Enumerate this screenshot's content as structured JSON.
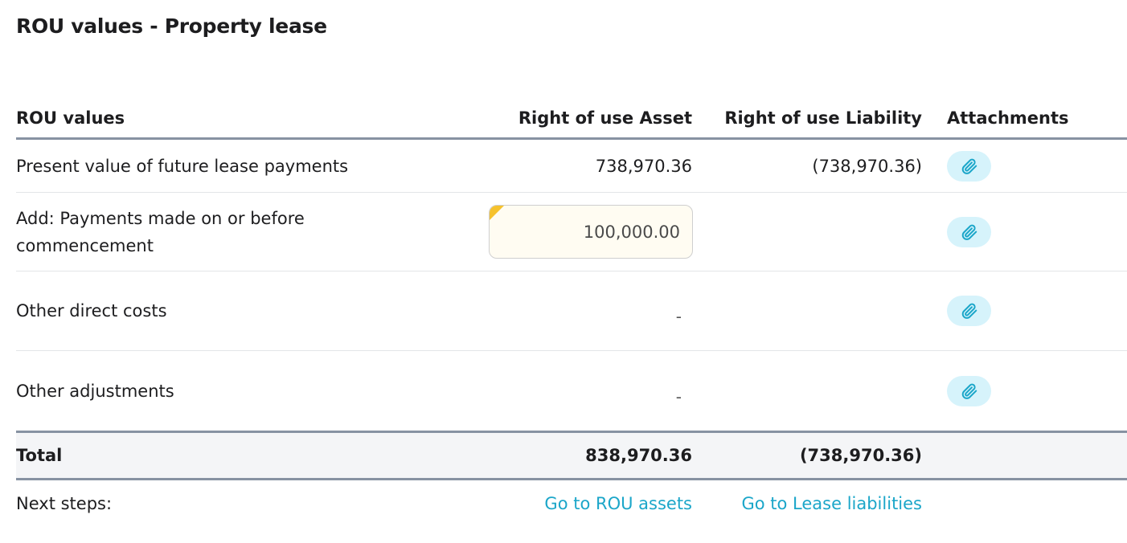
{
  "page": {
    "title": "ROU values - Property lease"
  },
  "table": {
    "headers": {
      "label": "ROU values",
      "asset": "Right of use Asset",
      "liability": "Right of use Liability",
      "attachments": "Attachments"
    },
    "rows": [
      {
        "label": "Present value of future lease payments",
        "asset": "738,970.36",
        "liability": "(738,970.36)",
        "attachment_icon": "paperclip-icon"
      },
      {
        "label_line1": "Add: Payments made on or before",
        "label_line2": "commencement",
        "asset_input": "100,000.00",
        "attachment_icon": "paperclip-icon"
      },
      {
        "label": "Other direct costs",
        "asset_placeholder": "-",
        "attachment_icon": "paperclip-icon"
      },
      {
        "label": "Other adjustments",
        "asset_placeholder": "-",
        "attachment_icon": "paperclip-icon"
      }
    ],
    "total": {
      "label": "Total",
      "asset": "838,970.36",
      "liability": "(738,970.36)"
    },
    "next_steps": {
      "label": "Next steps:",
      "asset_link": "Go to ROU assets",
      "liability_link": "Go to Lease liabilities"
    }
  },
  "colors": {
    "link": "#1ba6c9",
    "attach_button_bg": "#d6f3fb",
    "input_marker": "#f6c22d",
    "divider_strong": "#8792a2"
  }
}
